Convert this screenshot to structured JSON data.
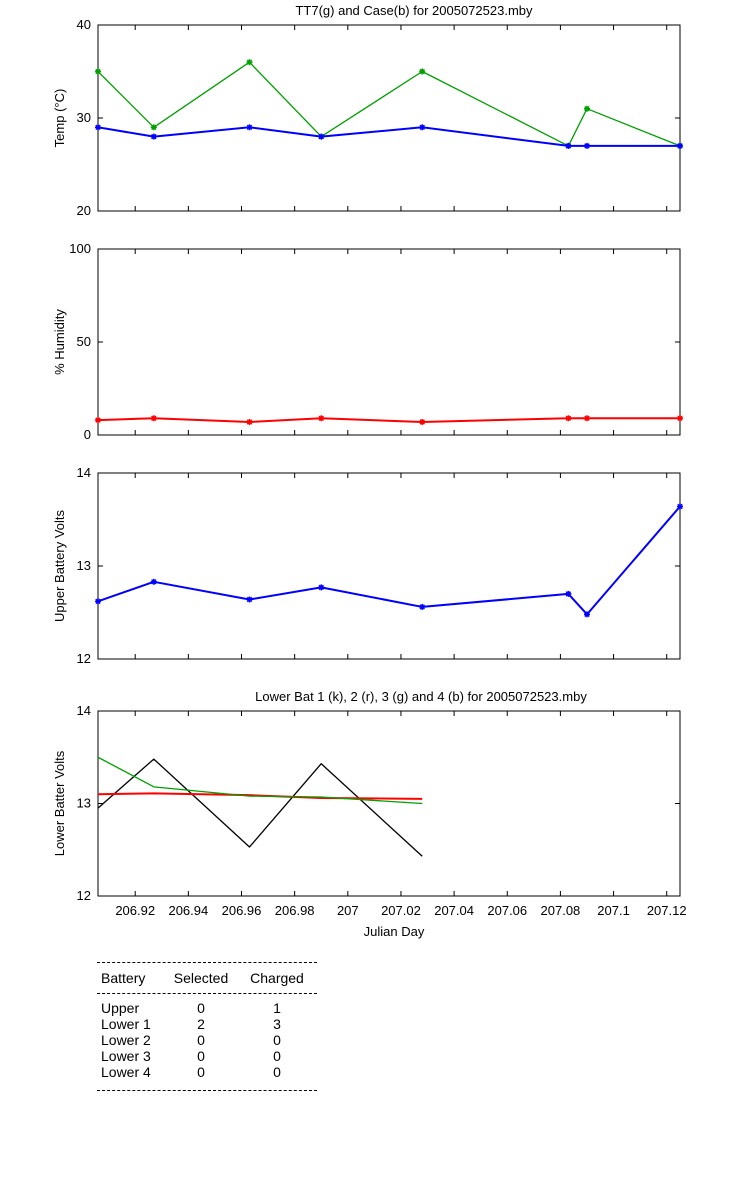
{
  "colors": {
    "green": "#00a000",
    "blue": "#0000ff",
    "red": "#ff0000",
    "black": "#000000"
  },
  "chart_data": [
    {
      "type": "line",
      "title": "TT7(g) and Case(b) for 2005072523.mby",
      "ylabel": "Temp  (°C)",
      "xlim": [
        206.906,
        207.125
      ],
      "ylim": [
        20,
        40
      ],
      "yticks": [
        20,
        30,
        40
      ],
      "grid": false,
      "series": [
        {
          "name": "TT7",
          "color": "#00a000",
          "markers": true,
          "x": [
            206.906,
            206.927,
            206.963,
            206.99,
            207.028,
            207.083,
            207.09,
            207.125
          ],
          "y": [
            35,
            29,
            36,
            28,
            35,
            27,
            31,
            27
          ]
        },
        {
          "name": "Case",
          "color": "#0000ff",
          "markers": true,
          "x": [
            206.906,
            206.927,
            206.963,
            206.99,
            207.028,
            207.083,
            207.09,
            207.125
          ],
          "y": [
            29,
            28,
            29,
            28,
            29,
            27,
            27,
            27
          ]
        }
      ]
    },
    {
      "type": "line",
      "title": "",
      "ylabel": "% Humidity",
      "xlim": [
        206.906,
        207.125
      ],
      "ylim": [
        0,
        100
      ],
      "yticks": [
        0,
        50,
        100
      ],
      "grid": false,
      "series": [
        {
          "color": "#ff0000",
          "markers": true,
          "x": [
            206.906,
            206.927,
            206.963,
            206.99,
            207.028,
            207.083,
            207.09,
            207.125
          ],
          "y": [
            8,
            9,
            7,
            9,
            7,
            9,
            9,
            9
          ]
        }
      ]
    },
    {
      "type": "line",
      "title": "",
      "ylabel": "Upper Battery Volts",
      "xlim": [
        206.906,
        207.125
      ],
      "ylim": [
        12,
        14
      ],
      "yticks": [
        12,
        13,
        14
      ],
      "grid": false,
      "series": [
        {
          "color": "#0000ff",
          "markers": true,
          "x": [
            206.906,
            206.927,
            206.963,
            206.99,
            207.028,
            207.083,
            207.09,
            207.125
          ],
          "y": [
            12.62,
            12.83,
            12.64,
            12.77,
            12.56,
            12.7,
            12.48,
            13.64
          ]
        }
      ]
    },
    {
      "type": "line",
      "title": "Lower Bat 1 (k), 2 (r), 3 (g) and 4 (b) for 2005072523.mby",
      "ylabel": "Lower Batter Volts",
      "xlabel": "Julian Day",
      "xlim": [
        206.906,
        207.125
      ],
      "ylim": [
        12,
        14
      ],
      "yticks": [
        12,
        13,
        14
      ],
      "xticks": [
        206.92,
        206.94,
        206.96,
        206.98,
        207,
        207.02,
        207.04,
        207.06,
        207.08,
        207.1,
        207.12
      ],
      "xticklabels": [
        "206.92",
        "206.94",
        "206.96",
        "206.98",
        "207",
        "207.02",
        "207.04",
        "207.06",
        "207.08",
        "207.1",
        "207.12"
      ],
      "grid": false,
      "series": [
        {
          "color": "#000000",
          "markers": false,
          "x": [
            206.906,
            206.927,
            206.963,
            206.99,
            207.028
          ],
          "y": [
            12.95,
            13.48,
            12.53,
            13.43,
            12.43
          ]
        },
        {
          "color": "#ff0000",
          "markers": false,
          "x": [
            206.906,
            206.927,
            206.963,
            206.99,
            207.028
          ],
          "y": [
            13.1,
            13.11,
            13.09,
            13.06,
            13.05
          ]
        },
        {
          "color": "#00a000",
          "markers": false,
          "x": [
            206.906,
            206.927,
            206.963,
            206.99,
            207.028
          ],
          "y": [
            13.5,
            13.18,
            13.08,
            13.07,
            13.0
          ]
        }
      ]
    }
  ],
  "battery_table": {
    "headers": [
      "Battery",
      "Selected",
      "Charged"
    ],
    "rows": [
      [
        "Upper",
        "0",
        "1"
      ],
      [
        "Lower 1",
        "2",
        "3"
      ],
      [
        "Lower 2",
        "0",
        "0"
      ],
      [
        "Lower 3",
        "0",
        "0"
      ],
      [
        "Lower 4",
        "0",
        "0"
      ]
    ]
  }
}
